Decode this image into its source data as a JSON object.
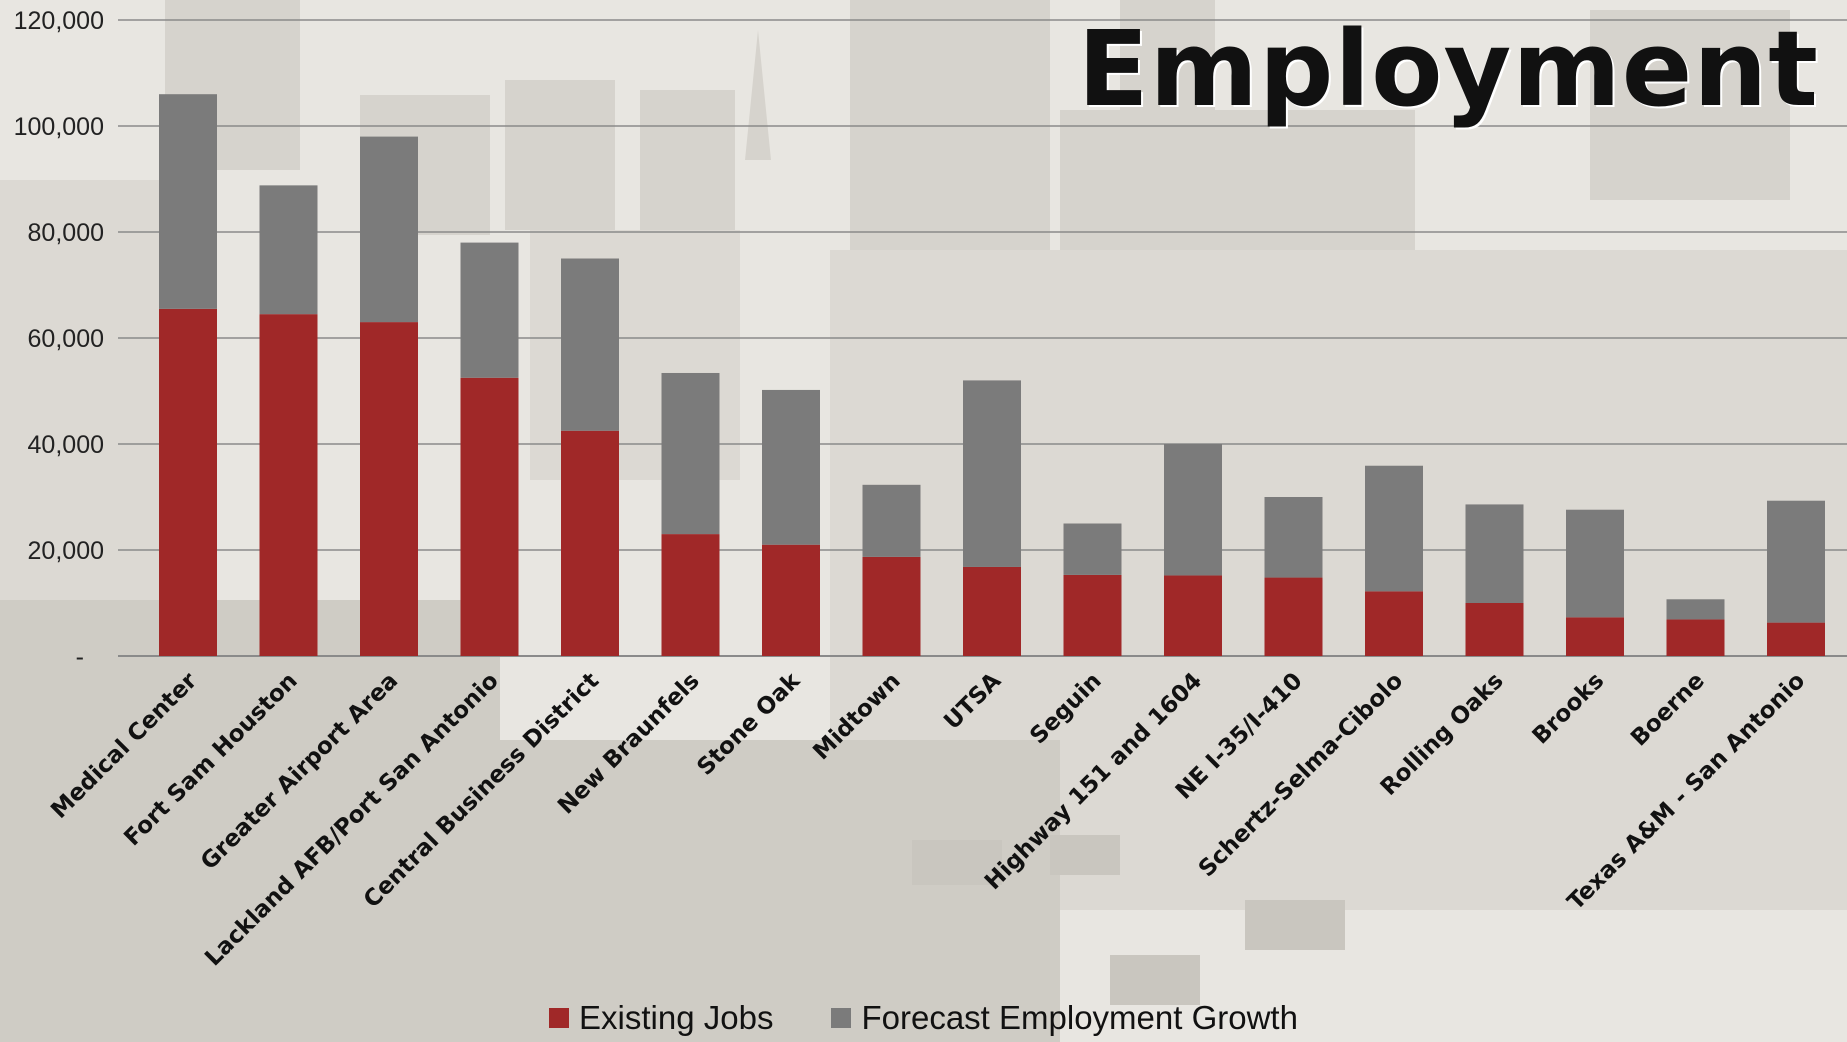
{
  "chart_data": {
    "type": "bar",
    "stacked": true,
    "title": "Employment",
    "categories": [
      "Medical Center",
      "Fort Sam Houston",
      "Greater Airport Area",
      "Lackland AFB/Port San Antonio",
      "Central Business District",
      "New Braunfels",
      "Stone Oak",
      "Midtown",
      "UTSA",
      "Seguin",
      "Highway 151 and 1604",
      "NE I-35/I-410",
      "Schertz-Selma-Cibolo",
      "Rolling Oaks",
      "Brooks",
      "Boerne",
      "Texas A&M - San Antonio"
    ],
    "series": [
      {
        "name": "Existing Jobs",
        "color": "#a02828",
        "values": [
          65500,
          64500,
          63000,
          52500,
          42500,
          23000,
          21000,
          18700,
          16800,
          15300,
          15200,
          14800,
          12200,
          10000,
          7300,
          6900,
          6300
        ]
      },
      {
        "name": "Forecast Employment Growth",
        "color": "#7b7b7b",
        "values": [
          40500,
          24300,
          35000,
          25500,
          32500,
          30400,
          29200,
          13600,
          35200,
          9700,
          24800,
          15200,
          23700,
          18600,
          20300,
          3800,
          23000
        ]
      }
    ],
    "ylim": [
      0,
      120000
    ],
    "yticks": [
      {
        "value": 0,
        "label": "-"
      },
      {
        "value": 20000,
        "label": "20,000"
      },
      {
        "value": 40000,
        "label": "40,000"
      },
      {
        "value": 60000,
        "label": "60,000"
      },
      {
        "value": 80000,
        "label": "80,000"
      },
      {
        "value": 100000,
        "label": "100,000"
      },
      {
        "value": 120000,
        "label": "120,000"
      }
    ],
    "grid": true,
    "legend_position": "bottom-center",
    "xlabel": "",
    "ylabel": ""
  },
  "colors": {
    "existing": "#a02828",
    "forecast": "#7b7b7b",
    "gridline": "#8a8a8a",
    "background": "#e9e7e2"
  }
}
